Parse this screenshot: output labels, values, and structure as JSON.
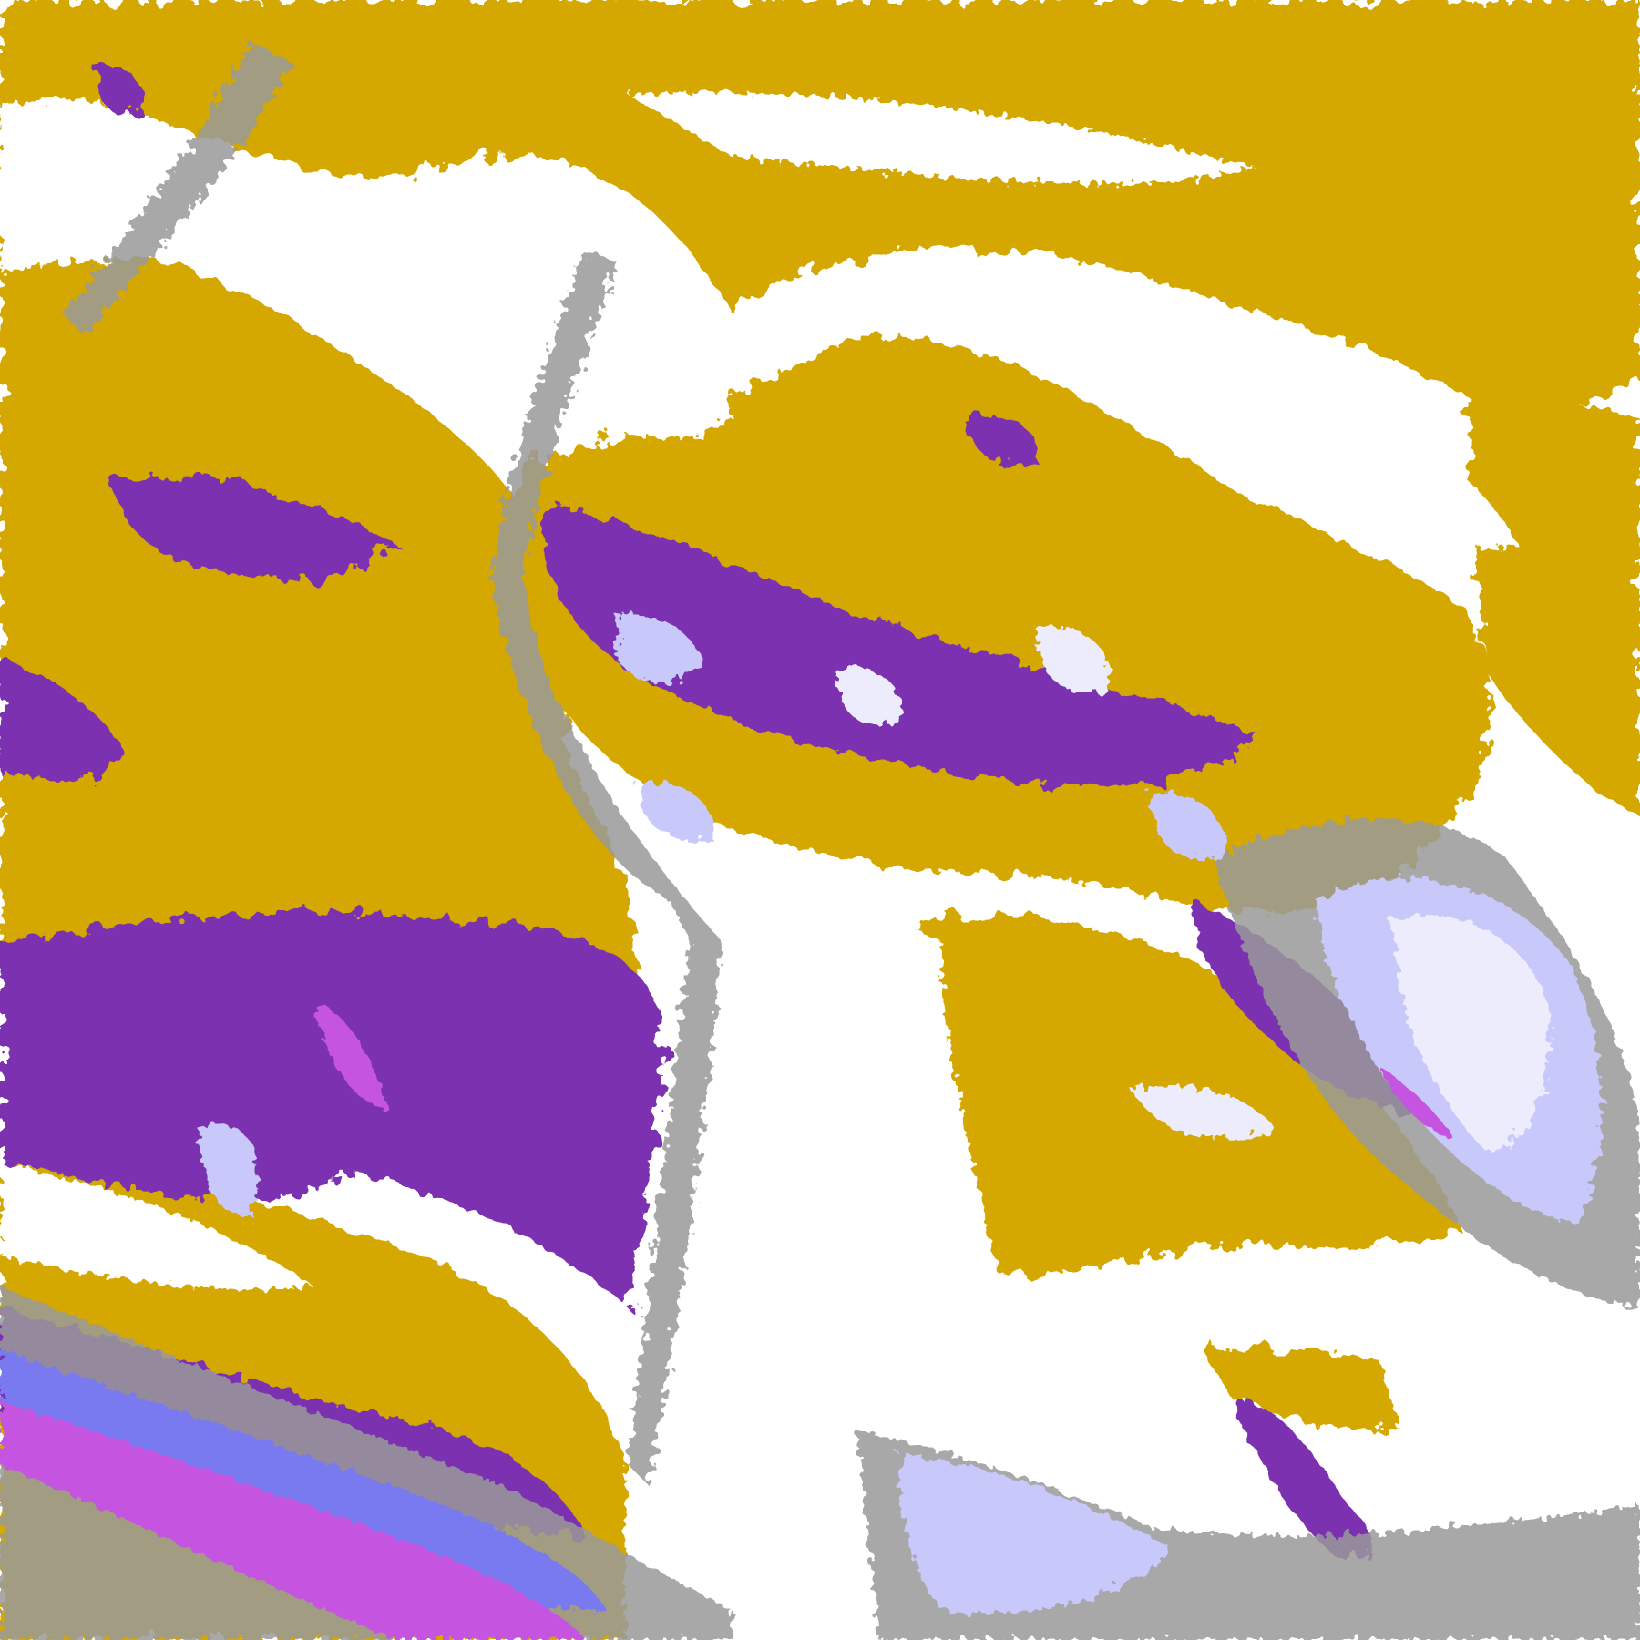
{
  "map": {
    "kind": "satellite cloud-classification false-color image",
    "colors": {
      "clear": "#ffffff",
      "gold": "#d4a800",
      "dark_gold": "#bf8f00",
      "purple": "#7b33b0",
      "magenta": "#c555e0",
      "blue": "#7a7af0",
      "lavender": "#c8c8fa",
      "pale": "#ececfc",
      "gray": "#9a9a9a"
    }
  }
}
